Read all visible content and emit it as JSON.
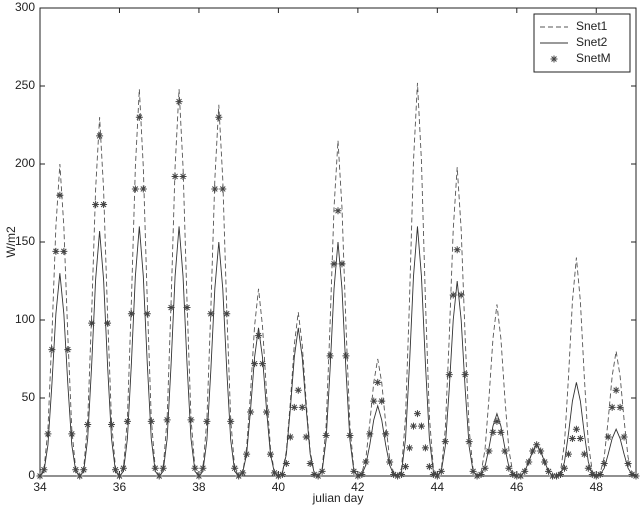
{
  "chart_data": {
    "type": "line",
    "xlabel": "julian day",
    "ylabel": "W/m2",
    "xlim": [
      34,
      49
    ],
    "ylim": [
      0,
      300
    ],
    "xticks": [
      34,
      36,
      38,
      40,
      42,
      44,
      46,
      48
    ],
    "yticks": [
      0,
      50,
      100,
      150,
      200,
      250,
      300
    ],
    "grid": false,
    "legend": "northeast",
    "x": [
      34,
      34.1,
      34.2,
      34.3,
      34.4,
      34.5,
      34.6,
      34.7,
      34.8,
      34.9,
      35,
      35.1,
      35.2,
      35.3,
      35.4,
      35.5,
      35.6,
      35.7,
      35.8,
      35.9,
      36,
      36.1,
      36.2,
      36.3,
      36.4,
      36.5,
      36.6,
      36.7,
      36.8,
      36.9,
      37,
      37.1,
      37.2,
      37.3,
      37.4,
      37.5,
      37.6,
      37.7,
      37.8,
      37.9,
      38,
      38.1,
      38.2,
      38.3,
      38.4,
      38.5,
      38.6,
      38.7,
      38.8,
      38.9,
      39,
      39.1,
      39.2,
      39.3,
      39.4,
      39.5,
      39.6,
      39.7,
      39.8,
      39.9,
      40,
      40.1,
      40.2,
      40.3,
      40.4,
      40.5,
      40.6,
      40.7,
      40.8,
      40.9,
      41,
      41.1,
      41.2,
      41.3,
      41.4,
      41.5,
      41.6,
      41.7,
      41.8,
      41.9,
      42,
      42.1,
      42.2,
      42.3,
      42.4,
      42.5,
      42.6,
      42.7,
      42.8,
      42.9,
      43,
      43.1,
      43.2,
      43.3,
      43.4,
      43.5,
      43.6,
      43.7,
      43.8,
      43.9,
      44,
      44.1,
      44.2,
      44.3,
      44.4,
      44.5,
      44.6,
      44.7,
      44.8,
      44.9,
      45,
      45.1,
      45.2,
      45.3,
      45.4,
      45.5,
      45.6,
      45.7,
      45.8,
      45.9,
      46,
      46.1,
      46.2,
      46.3,
      46.4,
      46.5,
      46.6,
      46.7,
      46.8,
      46.9,
      47,
      47.1,
      47.2,
      47.3,
      47.4,
      47.5,
      47.6,
      47.7,
      47.8,
      47.9,
      48,
      48.1,
      48.2,
      48.3,
      48.4,
      48.5,
      48.6,
      48.7,
      48.8,
      48.9,
      49
    ],
    "series": [
      {
        "name": "Snet1",
        "color": "#555555",
        "linestyle": "dashed",
        "values": [
          0,
          4,
          30,
          90,
          160,
          200,
          160,
          90,
          30,
          4,
          0,
          5,
          35,
          104,
          184,
          230,
          184,
          104,
          35,
          5,
          0,
          5,
          37,
          112,
          198,
          248,
          198,
          112,
          37,
          5,
          0,
          5,
          37,
          112,
          198,
          248,
          198,
          112,
          37,
          5,
          0,
          5,
          36,
          107,
          190,
          238,
          190,
          107,
          36,
          5,
          0,
          2,
          18,
          54,
          96,
          120,
          96,
          54,
          18,
          2,
          0,
          2,
          16,
          47,
          84,
          105,
          84,
          47,
          16,
          2,
          0,
          4,
          32,
          97,
          172,
          215,
          172,
          97,
          32,
          4,
          0,
          2,
          11,
          34,
          60,
          75,
          60,
          34,
          11,
          2,
          0,
          5,
          38,
          113,
          202,
          252,
          202,
          113,
          38,
          5,
          0,
          4,
          30,
          89,
          158,
          198,
          158,
          89,
          30,
          4,
          0,
          2,
          17,
          50,
          88,
          110,
          88,
          50,
          17,
          2,
          0,
          0,
          3,
          9,
          16,
          20,
          16,
          9,
          3,
          0,
          0,
          3,
          21,
          63,
          112,
          140,
          112,
          63,
          21,
          3,
          0,
          2,
          12,
          36,
          64,
          80,
          64,
          36,
          12,
          2,
          0
        ]
      },
      {
        "name": "Snet2",
        "color": "#333333",
        "linestyle": "solid",
        "values": [
          0,
          3,
          20,
          59,
          104,
          130,
          104,
          59,
          20,
          3,
          0,
          3,
          24,
          71,
          126,
          157,
          126,
          71,
          24,
          3,
          0,
          3,
          24,
          72,
          128,
          160,
          128,
          72,
          24,
          3,
          0,
          3,
          24,
          72,
          128,
          160,
          128,
          72,
          24,
          3,
          0,
          3,
          23,
          68,
          120,
          150,
          120,
          68,
          23,
          3,
          0,
          2,
          14,
          43,
          76,
          95,
          76,
          43,
          14,
          2,
          0,
          2,
          14,
          43,
          76,
          95,
          76,
          43,
          14,
          2,
          0,
          3,
          23,
          68,
          120,
          150,
          120,
          68,
          23,
          3,
          0,
          1,
          7,
          20,
          36,
          45,
          36,
          20,
          7,
          1,
          0,
          3,
          24,
          72,
          128,
          160,
          128,
          72,
          24,
          3,
          0,
          3,
          19,
          56,
          100,
          125,
          100,
          56,
          19,
          3,
          0,
          1,
          6,
          18,
          32,
          40,
          32,
          18,
          6,
          1,
          0,
          0,
          3,
          9,
          16,
          20,
          16,
          9,
          3,
          0,
          0,
          1,
          9,
          27,
          48,
          60,
          48,
          27,
          9,
          1,
          0,
          1,
          5,
          14,
          24,
          30,
          24,
          14,
          5,
          1,
          0
        ]
      },
      {
        "name": "SnetM",
        "color": "#444444",
        "linestyle": "markers",
        "values": [
          0,
          4,
          27,
          81,
          144,
          180,
          144,
          81,
          27,
          4,
          0,
          4,
          33,
          98,
          174,
          218,
          174,
          98,
          33,
          4,
          0,
          5,
          35,
          104,
          184,
          230,
          184,
          104,
          35,
          5,
          0,
          5,
          36,
          108,
          192,
          240,
          192,
          108,
          36,
          5,
          0,
          5,
          35,
          104,
          184,
          230,
          184,
          104,
          35,
          5,
          0,
          2,
          14,
          41,
          72,
          90,
          72,
          41,
          14,
          2,
          0,
          1,
          8,
          25,
          44,
          55,
          44,
          25,
          8,
          1,
          0,
          3,
          26,
          77,
          136,
          170,
          136,
          77,
          26,
          3,
          0,
          1,
          9,
          27,
          48,
          60,
          48,
          27,
          9,
          1,
          0,
          1,
          6,
          18,
          32,
          40,
          32,
          18,
          6,
          1,
          0,
          3,
          22,
          65,
          116,
          145,
          116,
          65,
          22,
          3,
          0,
          1,
          5,
          16,
          28,
          35,
          28,
          16,
          5,
          1,
          0,
          0,
          3,
          9,
          16,
          20,
          16,
          9,
          3,
          0,
          0,
          1,
          5,
          14,
          24,
          30,
          24,
          14,
          5,
          1,
          0,
          1,
          8,
          25,
          44,
          55,
          44,
          25,
          8,
          1,
          0
        ]
      }
    ]
  }
}
